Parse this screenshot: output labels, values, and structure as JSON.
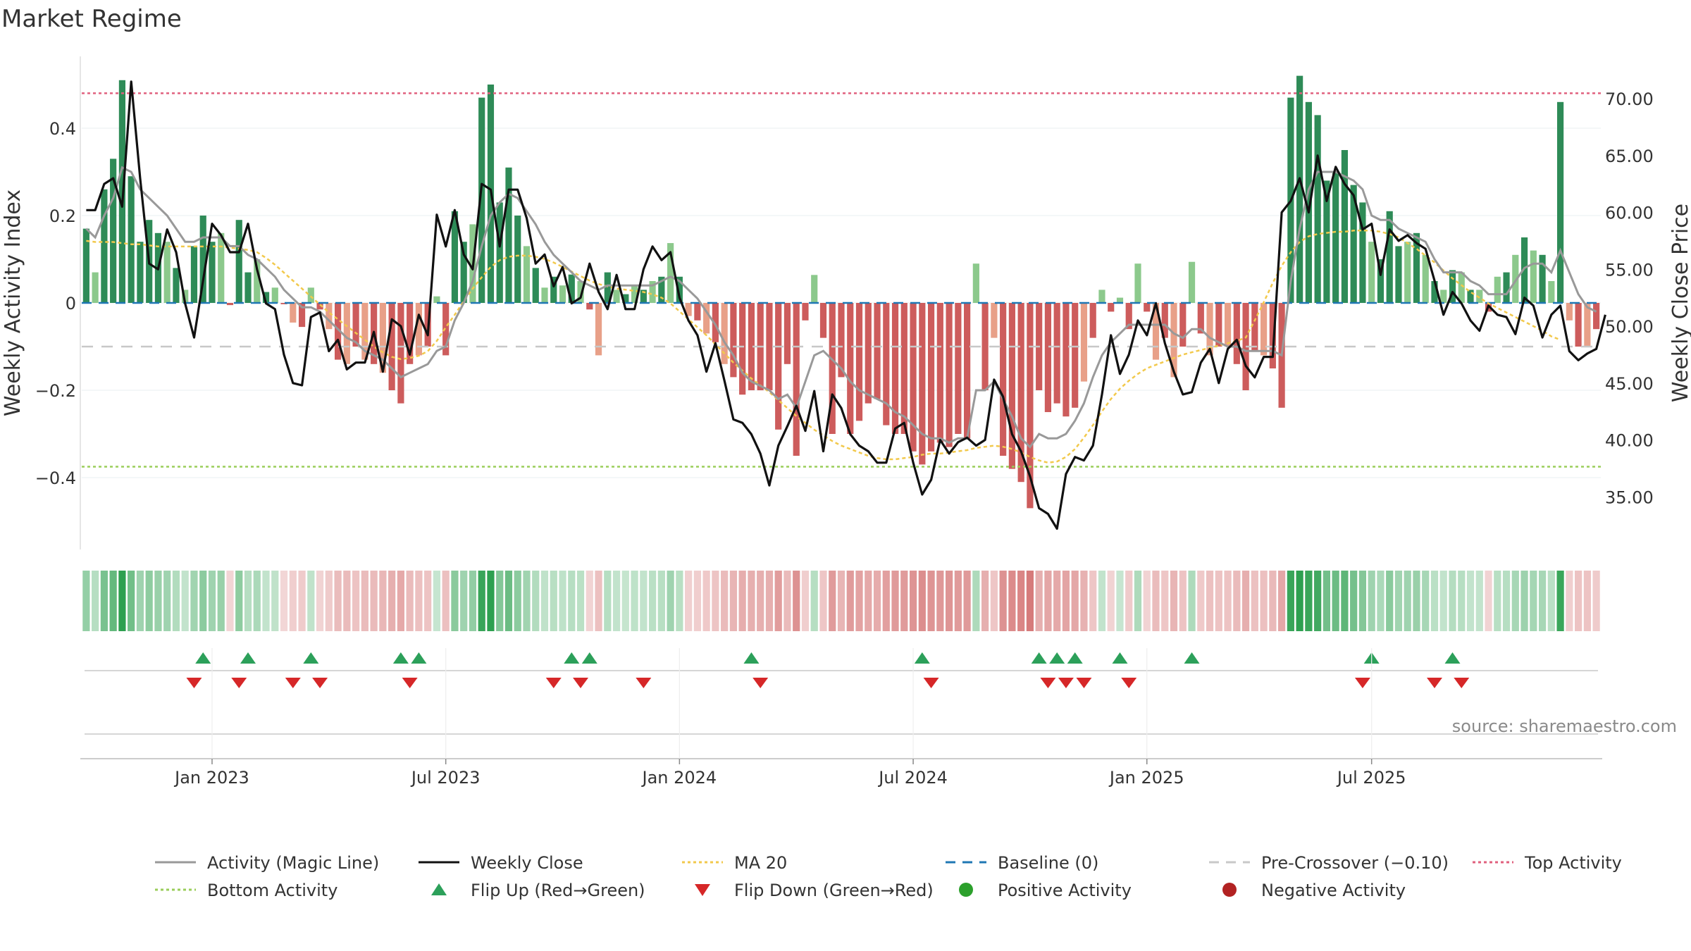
{
  "title": "Market Regime",
  "source": "source: sharemaestro.com",
  "chart_data": {
    "type": "bar",
    "title": "Market Regime",
    "ylabel_left": "Weekly Activity Index",
    "ylabel_right": "Weekly Close Price",
    "ylim_left": [
      -0.56,
      0.56
    ],
    "ylim_right": [
      30.3,
      74.5
    ],
    "yticks_left": [
      {
        "value": 0.4,
        "label": "0.4"
      },
      {
        "value": 0.2,
        "label": "0.2"
      },
      {
        "value": 0,
        "label": "0"
      },
      {
        "value": -0.2,
        "label": "−0.2"
      },
      {
        "value": -0.4,
        "label": "−0.4"
      }
    ],
    "yticks_right": [
      {
        "value": 70,
        "label": "70.00"
      },
      {
        "value": 65,
        "label": "65.00"
      },
      {
        "value": 60,
        "label": "60.00"
      },
      {
        "value": 55,
        "label": "55.00"
      },
      {
        "value": 50,
        "label": "50.00"
      },
      {
        "value": 45,
        "label": "45.00"
      },
      {
        "value": 40,
        "label": "40.00"
      },
      {
        "value": 35,
        "label": "35.00"
      }
    ],
    "xticks": [
      {
        "week": 14,
        "label": "Jan 2023"
      },
      {
        "week": 40,
        "label": "Jul 2023"
      },
      {
        "week": 66,
        "label": "Jan 2024"
      },
      {
        "week": 92,
        "label": "Jul 2024"
      },
      {
        "week": 118,
        "label": "Jan 2025"
      },
      {
        "week": 143,
        "label": "Jul 2025"
      }
    ],
    "reference_lines": {
      "top_activity": 0.48,
      "bottom_activity": -0.375,
      "pre_crossover": -0.1,
      "baseline": 0
    },
    "activity": [
      0.17,
      0.07,
      0.26,
      0.33,
      0.51,
      0.29,
      0.14,
      0.19,
      0.16,
      0.14,
      0.08,
      0.03,
      0.13,
      0.2,
      0.14,
      0.16,
      -0.005,
      0.19,
      0.07,
      0.1,
      0.025,
      0.035,
      -0.003,
      -0.045,
      -0.055,
      0.035,
      -0.015,
      -0.06,
      -0.13,
      -0.14,
      -0.1,
      -0.13,
      -0.14,
      -0.16,
      -0.2,
      -0.23,
      -0.14,
      -0.12,
      -0.1,
      0.015,
      -0.12,
      0.21,
      0.14,
      0.18,
      0.47,
      0.5,
      0.23,
      0.31,
      0.2,
      0.13,
      0.08,
      0.035,
      0.06,
      0.04,
      0.065,
      0.05,
      -0.015,
      -0.12,
      0.07,
      0.03,
      0.02,
      0.04,
      0.03,
      0.05,
      0.06,
      0.137,
      0.06,
      -0.03,
      -0.04,
      -0.07,
      -0.09,
      -0.14,
      -0.17,
      -0.21,
      -0.2,
      -0.2,
      -0.2,
      -0.29,
      -0.14,
      -0.35,
      -0.04,
      0.064,
      -0.08,
      -0.3,
      -0.17,
      -0.3,
      -0.27,
      -0.23,
      -0.22,
      -0.28,
      -0.3,
      -0.3,
      -0.34,
      -0.37,
      -0.34,
      -0.32,
      -0.33,
      -0.3,
      -0.31,
      0.09,
      -0.2,
      -0.08,
      -0.35,
      -0.38,
      -0.41,
      -0.47,
      -0.2,
      -0.25,
      -0.23,
      -0.26,
      -0.24,
      -0.18,
      -0.08,
      0.03,
      -0.02,
      0.012,
      -0.06,
      0.09,
      -0.02,
      -0.13,
      -0.08,
      -0.17,
      -0.1,
      0.094,
      -0.07,
      -0.12,
      -0.1,
      -0.1,
      -0.14,
      -0.2,
      -0.11,
      -0.12,
      -0.15,
      -0.24,
      0.47,
      0.52,
      0.46,
      0.43,
      0.28,
      0.3,
      0.35,
      0.27,
      0.23,
      0.14,
      0.1,
      0.21,
      0.13,
      0.14,
      0.16,
      0.11,
      0.05,
      0.03,
      0.075,
      0.07,
      0.03,
      0.03,
      -0.02,
      0.06,
      0.07,
      0.11,
      0.15,
      0.12,
      0.11,
      0.05,
      0.46,
      -0.04,
      -0.1,
      -0.1,
      -0.06
    ],
    "activity_magic_line": [
      0.17,
      0.15,
      0.2,
      0.24,
      0.31,
      0.3,
      0.26,
      0.24,
      0.22,
      0.2,
      0.17,
      0.14,
      0.14,
      0.15,
      0.15,
      0.15,
      0.13,
      0.13,
      0.11,
      0.1,
      0.08,
      0.06,
      0.03,
      0.01,
      -0.01,
      -0.01,
      -0.02,
      -0.04,
      -0.06,
      -0.08,
      -0.09,
      -0.11,
      -0.12,
      -0.13,
      -0.15,
      -0.17,
      -0.16,
      -0.15,
      -0.14,
      -0.11,
      -0.1,
      -0.04,
      0.0,
      0.05,
      0.13,
      0.2,
      0.23,
      0.25,
      0.24,
      0.21,
      0.18,
      0.14,
      0.11,
      0.09,
      0.07,
      0.05,
      0.04,
      0.03,
      0.04,
      0.04,
      0.04,
      0.04,
      0.04,
      0.04,
      0.05,
      0.06,
      0.05,
      0.03,
      0.01,
      -0.02,
      -0.05,
      -0.09,
      -0.12,
      -0.16,
      -0.18,
      -0.19,
      -0.2,
      -0.22,
      -0.21,
      -0.24,
      -0.18,
      -0.12,
      -0.11,
      -0.13,
      -0.15,
      -0.18,
      -0.2,
      -0.21,
      -0.22,
      -0.23,
      -0.25,
      -0.26,
      -0.28,
      -0.3,
      -0.31,
      -0.31,
      -0.32,
      -0.31,
      -0.31,
      -0.2,
      -0.2,
      -0.18,
      -0.22,
      -0.26,
      -0.31,
      -0.33,
      -0.3,
      -0.31,
      -0.31,
      -0.3,
      -0.27,
      -0.23,
      -0.17,
      -0.12,
      -0.09,
      -0.07,
      -0.05,
      -0.05,
      -0.05,
      -0.05,
      -0.05,
      -0.07,
      -0.08,
      -0.06,
      -0.06,
      -0.08,
      -0.09,
      -0.1,
      -0.1,
      -0.11,
      -0.11,
      -0.11,
      -0.11,
      -0.12,
      0.05,
      0.17,
      0.26,
      0.3,
      0.3,
      0.3,
      0.29,
      0.28,
      0.26,
      0.2,
      0.19,
      0.19,
      0.17,
      0.16,
      0.15,
      0.14,
      0.1,
      0.07,
      0.07,
      0.07,
      0.05,
      0.04,
      0.02,
      0.02,
      0.02,
      0.05,
      0.08,
      0.09,
      0.09,
      0.07,
      0.12,
      0.07,
      0.02,
      -0.01,
      -0.02
    ],
    "weekly_close": [
      60.2,
      60.2,
      62.5,
      63,
      60.5,
      71.5,
      63,
      55.5,
      55,
      58.5,
      56.5,
      52,
      49,
      54,
      59,
      58,
      56.5,
      56.5,
      59,
      55,
      52,
      51.5,
      47.5,
      45,
      44.8,
      50.8,
      51.2,
      47.8,
      48.8,
      46.2,
      46.8,
      46.8,
      49.5,
      46,
      50.6,
      50,
      47.5,
      51,
      49.2,
      59.8,
      57,
      60.2,
      56.3,
      55,
      62.5,
      62,
      57,
      62,
      62,
      59.5,
      55.5,
      56.3,
      53.5,
      55.2,
      52,
      52.5,
      55.5,
      53,
      51.5,
      54.5,
      51.5,
      51.5,
      55,
      57,
      55.8,
      56.5,
      52.5,
      50.5,
      49.2,
      46,
      48.5,
      45.2,
      41.8,
      41.5,
      40.5,
      38.8,
      36,
      39.5,
      41.2,
      43,
      40.8,
      44.3,
      39,
      44,
      42.8,
      40.5,
      39.5,
      39,
      38,
      38,
      41,
      41.5,
      38,
      35.2,
      36.5,
      40,
      38.8,
      39.8,
      40.2,
      39.5,
      40,
      45.3,
      43.8,
      40.5,
      39,
      36.8,
      34,
      33.5,
      32.2,
      37,
      38.5,
      38.2,
      39.5,
      44,
      49.2,
      45.8,
      47.5,
      50.5,
      49.2,
      52,
      48.5,
      46,
      44,
      44.2,
      46.8,
      48,
      45,
      48,
      48.8,
      46.5,
      45.5,
      47.3,
      47.3,
      60,
      61,
      63,
      60,
      65,
      61,
      64,
      62.5,
      61.5,
      58.5,
      59,
      54.5,
      58.5,
      57.5,
      58,
      57.3,
      56.8,
      54,
      51,
      53,
      52,
      50.5,
      49.6,
      51.8,
      51,
      50.8,
      49.3,
      52.5,
      51.8,
      49,
      51,
      51.8,
      47.8,
      47,
      47.6,
      48,
      51
    ],
    "ma20": [
      57.5,
      57.4,
      57.4,
      57.4,
      57.3,
      57.2,
      57.2,
      57.1,
      57.0,
      57.0,
      57.0,
      57.0,
      57.0,
      57.0,
      57.0,
      57.0,
      56.9,
      56.8,
      56.7,
      56.5,
      56.0,
      55.4,
      54.7,
      54.0,
      53.3,
      52.6,
      51.9,
      51.2,
      50.6,
      50.0,
      49.4,
      48.8,
      48.2,
      47.7,
      47.3,
      47.1,
      47.2,
      47.4,
      47.8,
      48.7,
      49.9,
      51.0,
      52.2,
      53.3,
      54.3,
      55.2,
      55.8,
      56.1,
      56.2,
      56.2,
      56.1,
      55.9,
      55.6,
      55.2,
      54.8,
      54.4,
      54.0,
      53.7,
      53.5,
      53.3,
      53.2,
      53.1,
      53.0,
      52.8,
      52.5,
      52.0,
      51.3,
      50.6,
      49.9,
      49.2,
      48.4,
      47.6,
      46.8,
      46.1,
      45.4,
      44.8,
      44.2,
      43.5,
      42.8,
      42.1,
      41.5,
      40.9,
      40.4,
      39.9,
      39.5,
      39.2,
      38.9,
      38.6,
      38.4,
      38.3,
      38.3,
      38.4,
      38.5,
      38.7,
      38.8,
      38.8,
      38.9,
      39.0,
      39.1,
      39.3,
      39.4,
      39.5,
      39.4,
      39.2,
      38.9,
      38.5,
      38.2,
      38.0,
      38.1,
      38.5,
      39.2,
      40.2,
      41.3,
      42.5,
      43.6,
      44.5,
      45.2,
      45.8,
      46.3,
      46.6,
      46.9,
      47.2,
      47.5,
      47.7,
      47.9,
      48.1,
      48.3,
      48.5,
      48.7,
      49.0,
      50.5,
      52.1,
      53.8,
      55.3,
      56.5,
      57.4,
      57.9,
      58.1,
      58.2,
      58.3,
      58.3,
      58.4,
      58.4,
      58.4,
      58.3,
      58.1,
      57.8,
      57.3,
      56.8,
      56.2,
      55.6,
      54.9,
      54.2,
      53.6,
      53.0,
      52.5,
      52.0,
      51.6,
      51.2,
      50.8,
      50.4,
      50.0,
      49.6,
      49.1,
      48.8
    ],
    "regime_strip": "activity-colored",
    "flip_up_weeks": [
      13,
      18,
      25,
      35,
      37,
      54,
      56,
      74,
      93,
      106,
      108,
      110,
      115,
      123,
      143,
      152
    ],
    "flip_down_weeks": [
      12,
      17,
      23,
      26,
      36,
      52,
      55,
      62,
      75,
      94,
      107,
      109,
      111,
      116,
      142,
      150,
      153
    ]
  },
  "legend": {
    "items": [
      {
        "label": "Activity (Magic Line)",
        "style": "solid",
        "color": "#999999"
      },
      {
        "label": "Weekly Close",
        "style": "solid",
        "color": "#111111"
      },
      {
        "label": "MA 20",
        "style": "dotted",
        "color": "#f2c94c"
      },
      {
        "label": "Baseline (0)",
        "style": "dashed",
        "color": "#1f77b4"
      },
      {
        "label": "Pre-Crossover (−0.10)",
        "style": "dashed",
        "color": "#c8c8c8"
      },
      {
        "label": "Top Activity",
        "style": "dotted",
        "color": "#e0607e"
      },
      {
        "label": "Bottom Activity",
        "style": "dotted",
        "color": "#9acd5a"
      },
      {
        "label": "Flip Up (Red→Green)",
        "style": "triangle-up",
        "color": "#2ca05a"
      },
      {
        "label": "Flip Down (Green→Red)",
        "style": "triangle-down",
        "color": "#d62728"
      },
      {
        "label": "Positive Activity",
        "style": "circle",
        "color": "#2ca02c"
      },
      {
        "label": "Negative Activity",
        "style": "circle",
        "color": "#b22222"
      }
    ]
  },
  "colors": {
    "pos_strong": "#2e8b57",
    "pos_light": "#8cc98c",
    "neg_strong": "#cd5c5c",
    "neg_light": "#e8a088",
    "close_line": "#111111",
    "magic_line": "#999999",
    "ma_line": "#f2c94c",
    "baseline": "#1f77b4",
    "top_line": "#e0607e",
    "bottom_line": "#9acd5a",
    "pre_cross": "#c8c8c8",
    "flip_up": "#2ca05a",
    "flip_down": "#d62728"
  }
}
